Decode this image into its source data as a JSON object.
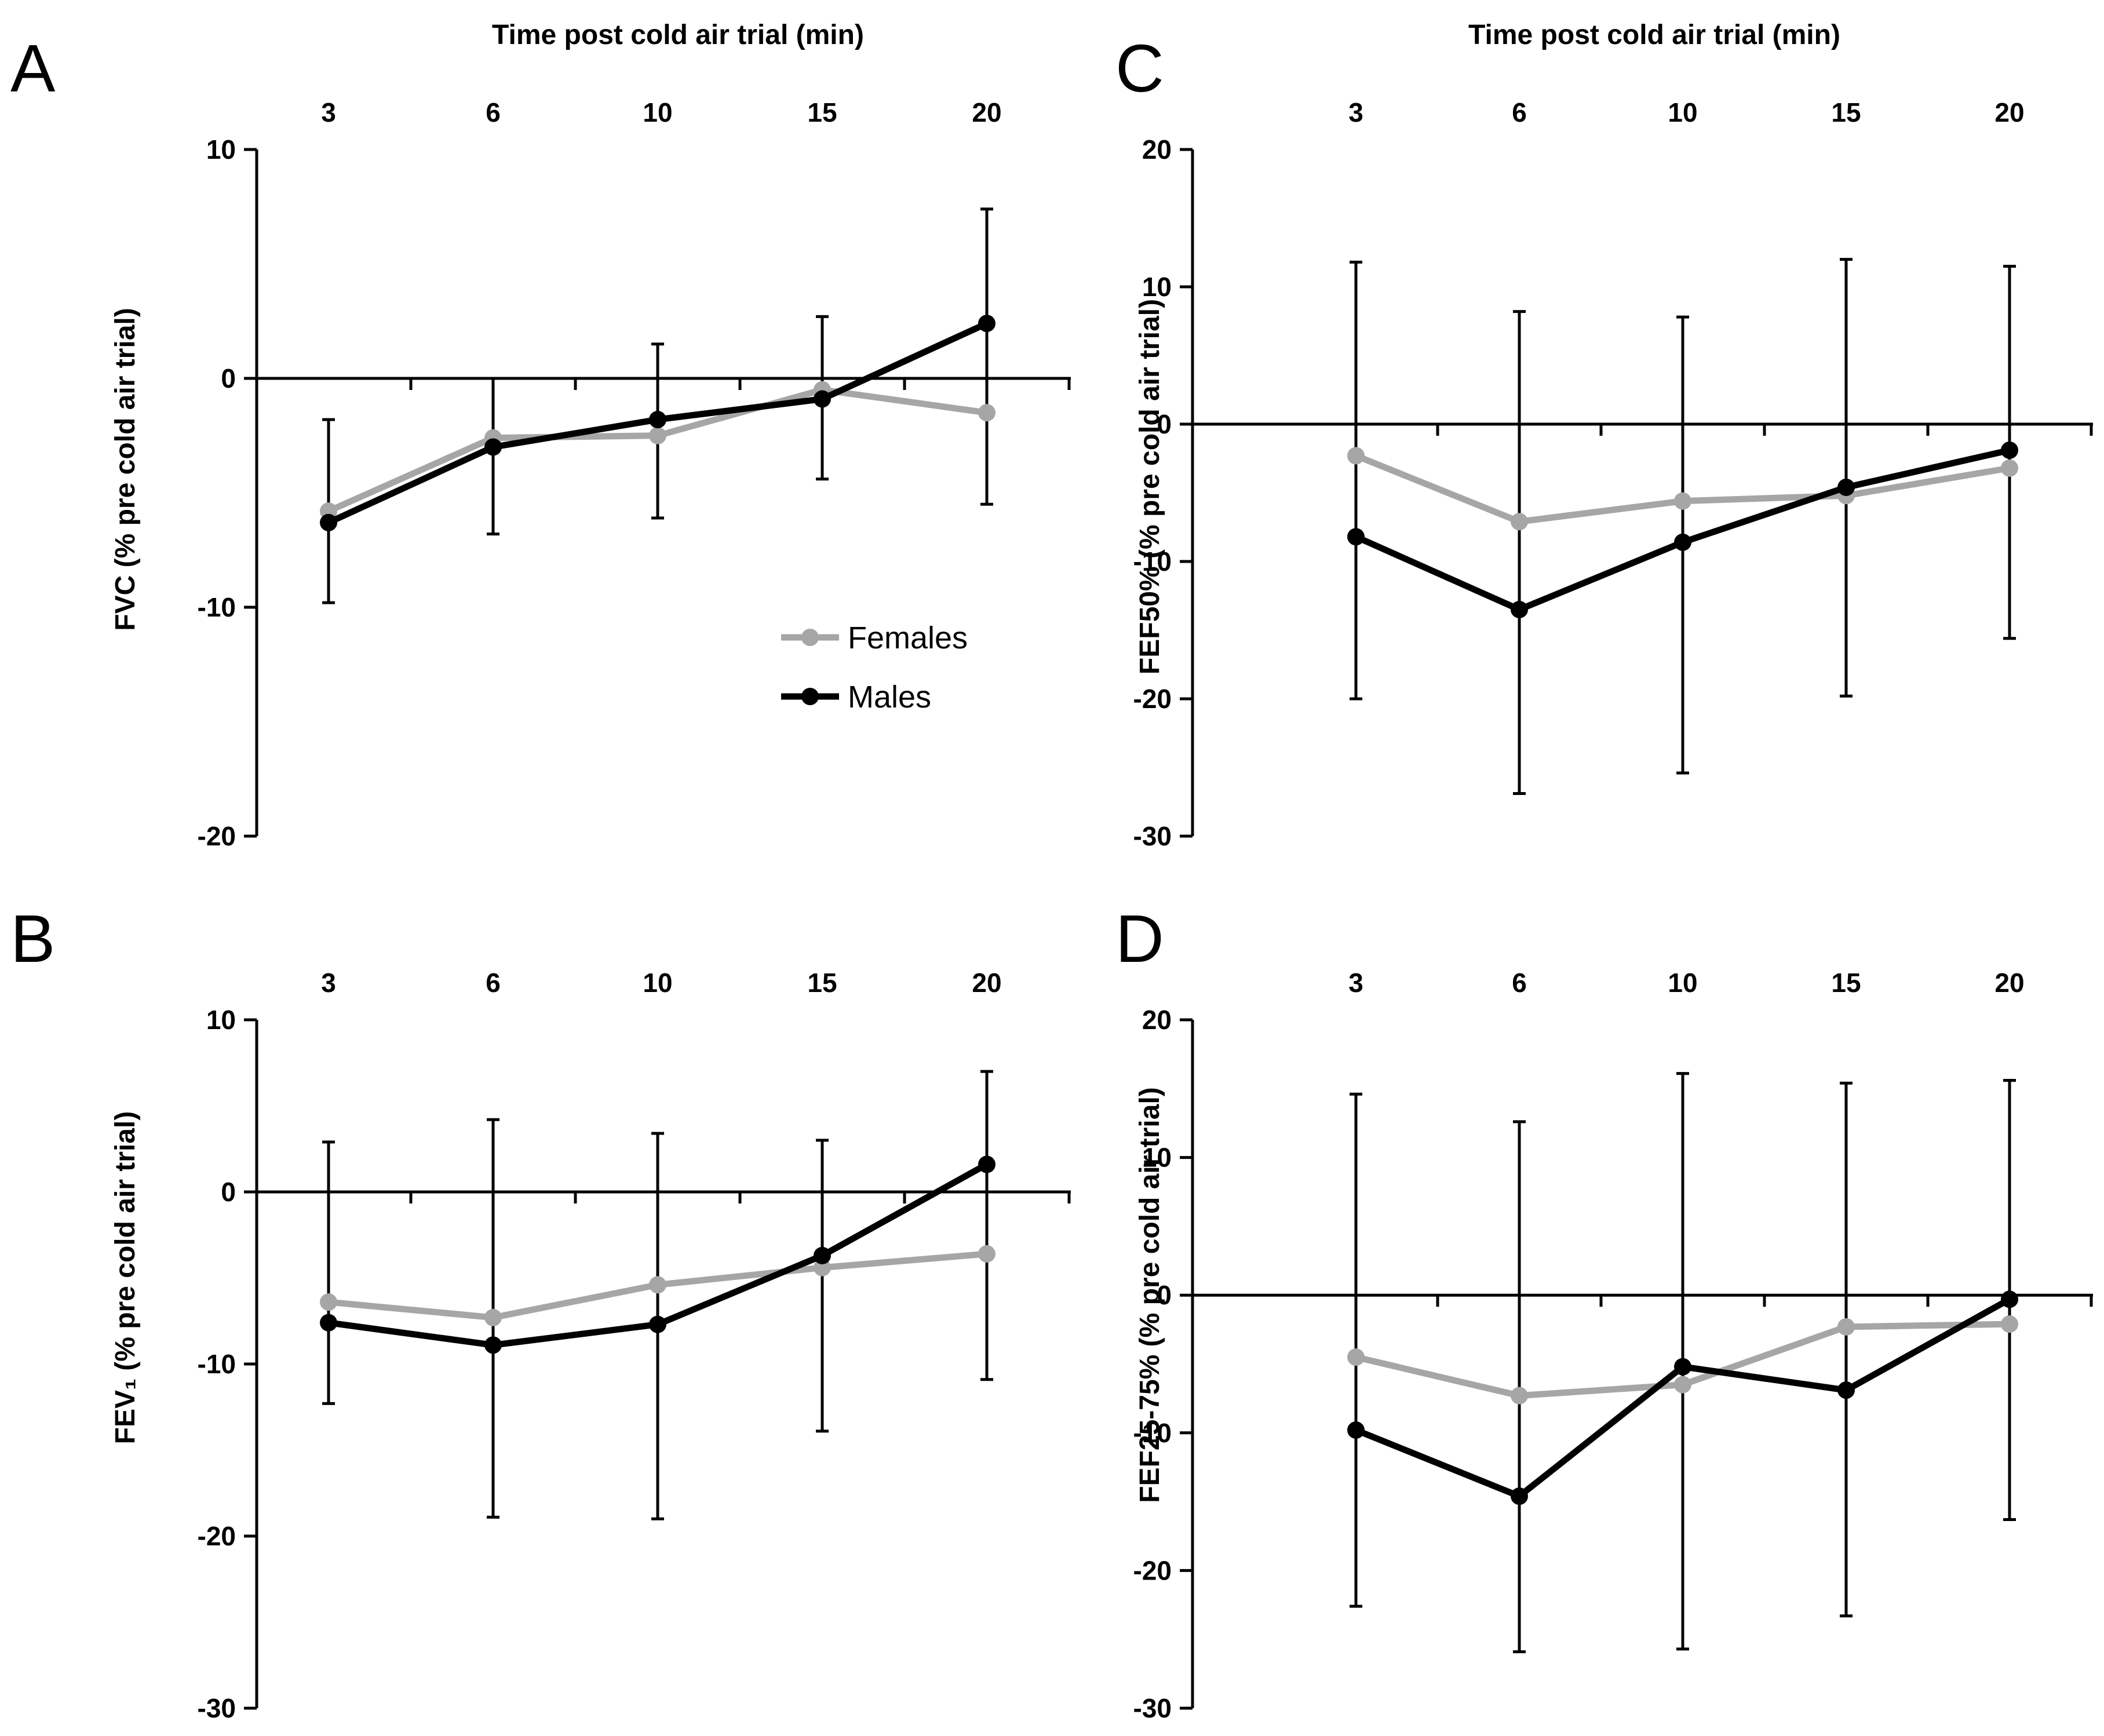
{
  "figure": {
    "top_axis_title": "Time post cold air trial (min)",
    "legend": [
      {
        "label": "Females",
        "color": "#a6a6a6"
      },
      {
        "label": "Males",
        "color": "#000000"
      }
    ]
  },
  "chart_data": [
    {
      "panel": "A",
      "type": "line",
      "ylabel": "FVC (% pre cold air trial)",
      "ylim": [
        -20,
        10
      ],
      "yticks": [
        10,
        0,
        -10,
        -20
      ],
      "xlabel": "Time post cold air trial (min)",
      "categories": [
        "3",
        "6",
        "10",
        "15",
        "20"
      ],
      "legend_position": "center-right",
      "series": [
        {
          "name": "Females",
          "color": "#a6a6a6",
          "values": [
            -5.8,
            -2.6,
            -2.5,
            -0.5,
            -1.5
          ]
        },
        {
          "name": "Males",
          "color": "#000000",
          "values": [
            -6.3,
            -3.0,
            -1.8,
            -0.9,
            2.4
          ],
          "error_low": [
            -9.8,
            -6.8,
            -6.1,
            -4.4,
            -5.5
          ],
          "error_high": [
            -1.8,
            0.0,
            1.5,
            2.7,
            7.4
          ]
        }
      ]
    },
    {
      "panel": "B",
      "type": "line",
      "ylabel": "FEV₁ (% pre cold air trial)",
      "ylim": [
        -30,
        10
      ],
      "yticks": [
        10,
        0,
        -10,
        -20,
        -30
      ],
      "categories": [
        "3",
        "6",
        "10",
        "15",
        "20"
      ],
      "series": [
        {
          "name": "Females",
          "color": "#a6a6a6",
          "values": [
            -6.4,
            -7.3,
            -5.4,
            -4.4,
            -3.6
          ]
        },
        {
          "name": "Males",
          "color": "#000000",
          "values": [
            -7.6,
            -8.9,
            -7.7,
            -3.7,
            1.6
          ],
          "error_low": [
            -12.3,
            -18.9,
            -19.0,
            -13.9,
            -10.9
          ],
          "error_high": [
            2.9,
            4.2,
            3.4,
            3.0,
            7.0
          ]
        }
      ]
    },
    {
      "panel": "C",
      "type": "line",
      "ylabel": "FEF50% (% pre cold air trial)",
      "ylim": [
        -30,
        20
      ],
      "yticks": [
        20,
        10,
        0,
        -10,
        -20,
        -30
      ],
      "xlabel": "Time post cold air trial (min)",
      "categories": [
        "3",
        "6",
        "10",
        "15",
        "20"
      ],
      "series": [
        {
          "name": "Females",
          "color": "#a6a6a6",
          "values": [
            -2.3,
            -7.1,
            -5.6,
            -5.2,
            -3.2
          ]
        },
        {
          "name": "Males",
          "color": "#000000",
          "values": [
            -8.2,
            -13.5,
            -8.6,
            -4.6,
            -1.9
          ],
          "error_low": [
            -20.0,
            -26.9,
            -25.4,
            -19.8,
            -15.6
          ],
          "error_high": [
            11.8,
            8.2,
            7.8,
            12.0,
            11.5
          ]
        }
      ]
    },
    {
      "panel": "D",
      "type": "line",
      "ylabel": "FEF25-75% (% pre cold air trial)",
      "ylim": [
        -30,
        20
      ],
      "yticks": [
        20,
        10,
        0,
        -10,
        -20,
        -30
      ],
      "categories": [
        "3",
        "6",
        "10",
        "15",
        "20"
      ],
      "series": [
        {
          "name": "Females",
          "color": "#a6a6a6",
          "values": [
            -4.5,
            -7.3,
            -6.5,
            -2.3,
            -2.1
          ]
        },
        {
          "name": "Males",
          "color": "#000000",
          "values": [
            -9.8,
            -14.6,
            -5.2,
            -6.9,
            -0.3
          ],
          "error_low": [
            -22.6,
            -25.9,
            -25.7,
            -23.3,
            -16.3
          ],
          "error_high": [
            14.6,
            12.6,
            16.1,
            15.4,
            15.6
          ]
        }
      ]
    }
  ]
}
